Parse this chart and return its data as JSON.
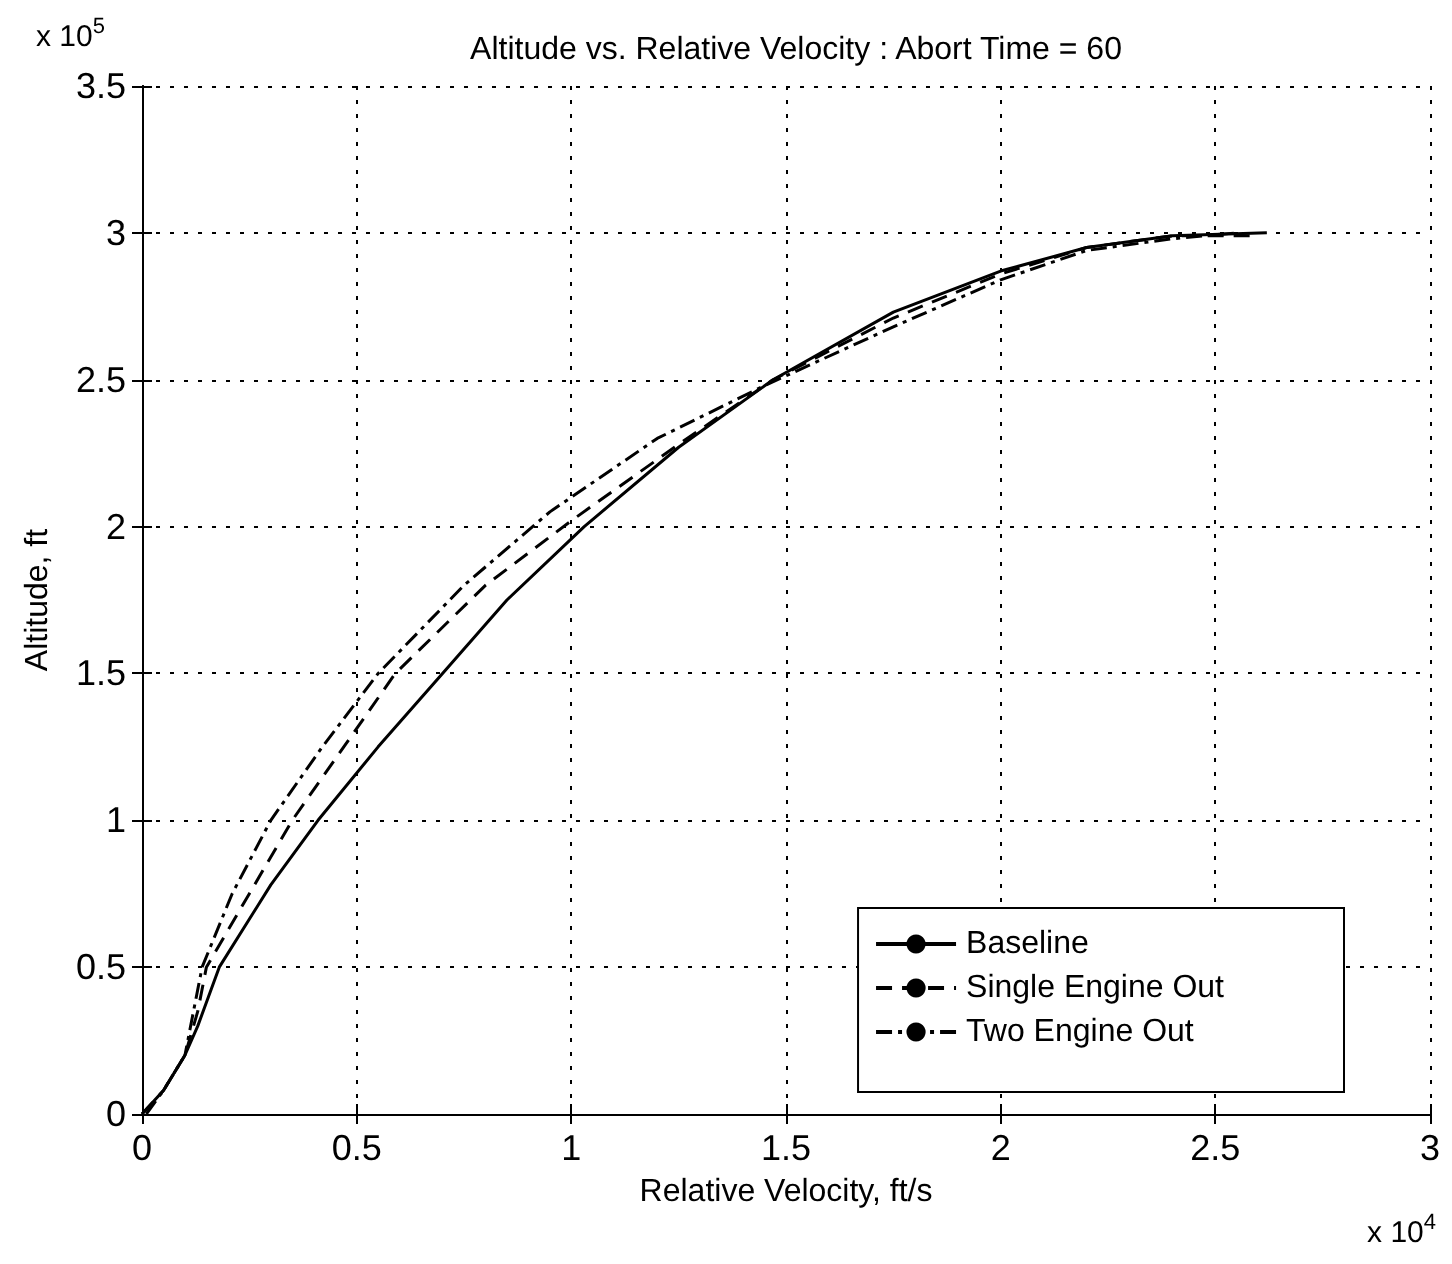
{
  "chart_data": {
    "type": "line",
    "title": "Altitude vs. Relative Velocity : Abort Time = 60",
    "xlabel": "Relative Velocity, ft/s",
    "ylabel": "Altitude, ft",
    "annotations": [
      "x 10$^{5}$",
      "x 10$^{4}$"
    ],
    "xlim": [
      0,
      3
    ],
    "xticks": [
      0,
      0.5,
      1,
      1.5,
      2,
      2.5,
      3
    ],
    "ylim": [
      0,
      3.5
    ],
    "yticks": [
      0,
      0.5,
      1,
      1.5,
      2,
      2.5,
      3,
      3.5
    ],
    "grid": true,
    "legend": "bottom right",
    "marker": "none",
    "series": [
      {
        "name": "Baseline",
        "color": "#000000",
        "line_style": "solid",
        "x": [
          0,
          0.05,
          0.1,
          0.13,
          0.18,
          0.3,
          0.41,
          0.55,
          0.7,
          0.85,
          1.03,
          1.25,
          1.47,
          1.75,
          2.0,
          2.2,
          2.4,
          2.62
        ],
        "values": [
          0,
          0.08,
          0.2,
          0.3,
          0.5,
          0.78,
          1.0,
          1.25,
          1.5,
          1.75,
          2.0,
          2.27,
          2.5,
          2.73,
          2.87,
          2.95,
          2.99,
          3.0
        ]
      },
      {
        "name": "Single Engine Out",
        "color": "#000000",
        "line_style": "dashed",
        "x": [
          0,
          0.05,
          0.1,
          0.13,
          0.15,
          0.25,
          0.35,
          0.47,
          0.59,
          0.8,
          1.0,
          1.25,
          1.47,
          1.75,
          2.0,
          2.2,
          2.4,
          2.6
        ],
        "values": [
          0,
          0.08,
          0.2,
          0.35,
          0.5,
          0.75,
          1.0,
          1.25,
          1.5,
          1.8,
          2.02,
          2.28,
          2.5,
          2.71,
          2.86,
          2.95,
          2.99,
          2.99
        ]
      },
      {
        "name": "Two Engine Out",
        "color": "#000000",
        "line_style": "dashdot",
        "x": [
          0.01,
          0.05,
          0.1,
          0.12,
          0.14,
          0.21,
          0.3,
          0.42,
          0.55,
          0.75,
          0.95,
          1.2,
          1.45,
          1.75,
          2.0,
          2.2,
          2.4,
          2.55
        ],
        "values": [
          0,
          0.08,
          0.2,
          0.35,
          0.5,
          0.75,
          1.0,
          1.25,
          1.5,
          1.8,
          2.05,
          2.3,
          2.48,
          2.68,
          2.84,
          2.94,
          2.98,
          3.0
        ]
      }
    ]
  }
}
